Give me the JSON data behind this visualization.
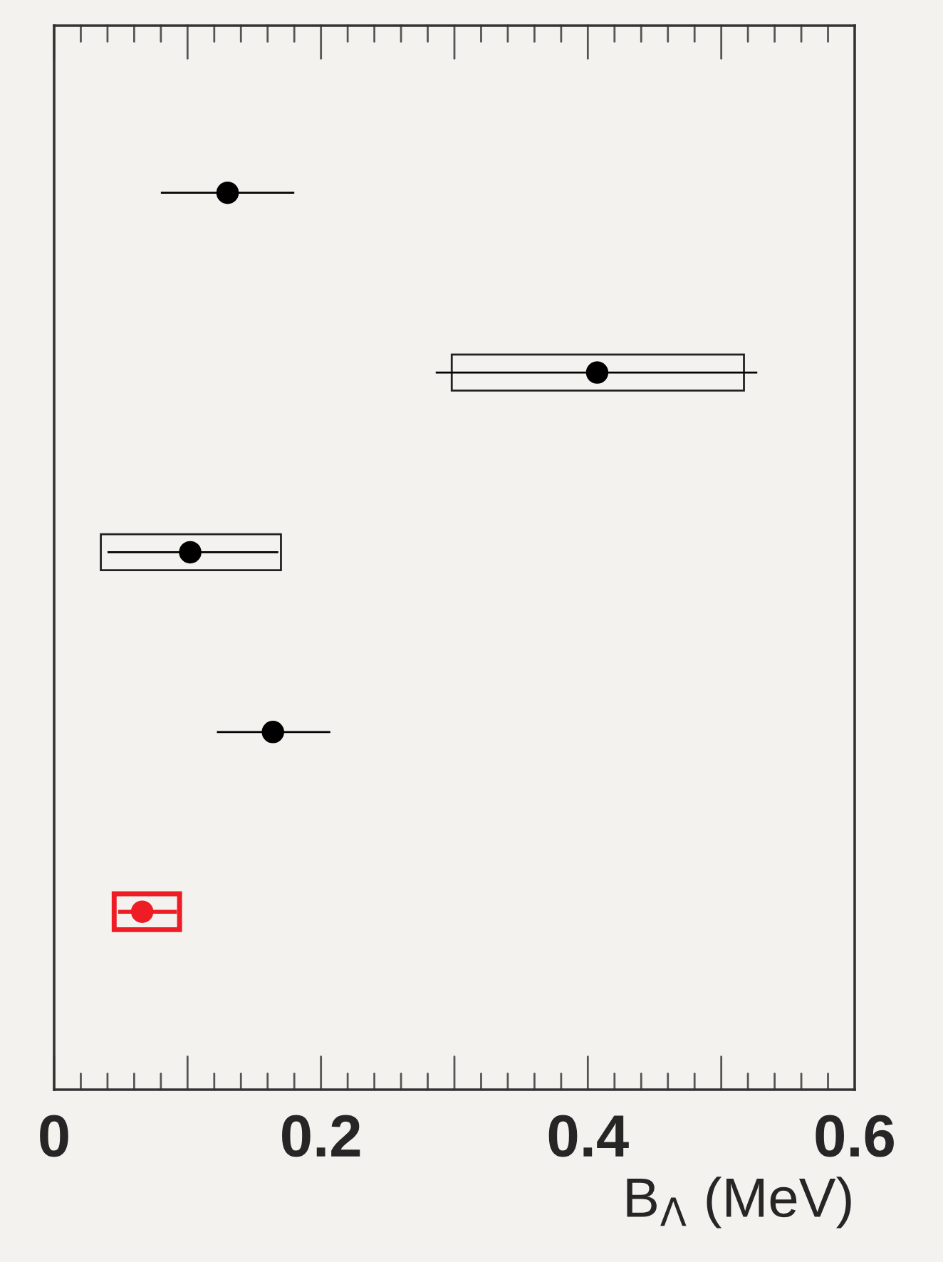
{
  "chart_data": {
    "type": "scatter",
    "orientation": "horizontal",
    "xlabel": "B$_{Λ}$ (MeV)",
    "categories": [
      null,
      null,
      null,
      null,
      null
    ],
    "xlim": [
      0,
      0.6
    ],
    "xticks": [
      0,
      0.2,
      0.4,
      0.6
    ],
    "tick_labels": "x",
    "grid": false,
    "legend": false,
    "marker": "circle",
    "series": [
      {
        "type": "bar",
        "base": [
          null,
          0.298,
          0.035,
          null,
          0.045
        ],
        "values": [
          null,
          0.219,
          0.135,
          null,
          0.049
        ],
        "colors": [
          "#222222",
          "#222222",
          "#222222",
          "#222222",
          "#ee1c24"
        ]
      },
      {
        "type": "scatter",
        "values": [
          0.13,
          0.407,
          0.102,
          0.164,
          0.066
        ],
        "errors": [
          [
            0.08,
            0.18
          ],
          [
            0.286,
            0.527
          ],
          [
            0.04,
            0.168
          ],
          [
            0.122,
            0.207
          ],
          [
            0.048,
            0.092
          ]
        ],
        "colors": [
          "#000000",
          "#000000",
          "#000000",
          "#000000",
          "#ee1c24"
        ]
      }
    ]
  }
}
